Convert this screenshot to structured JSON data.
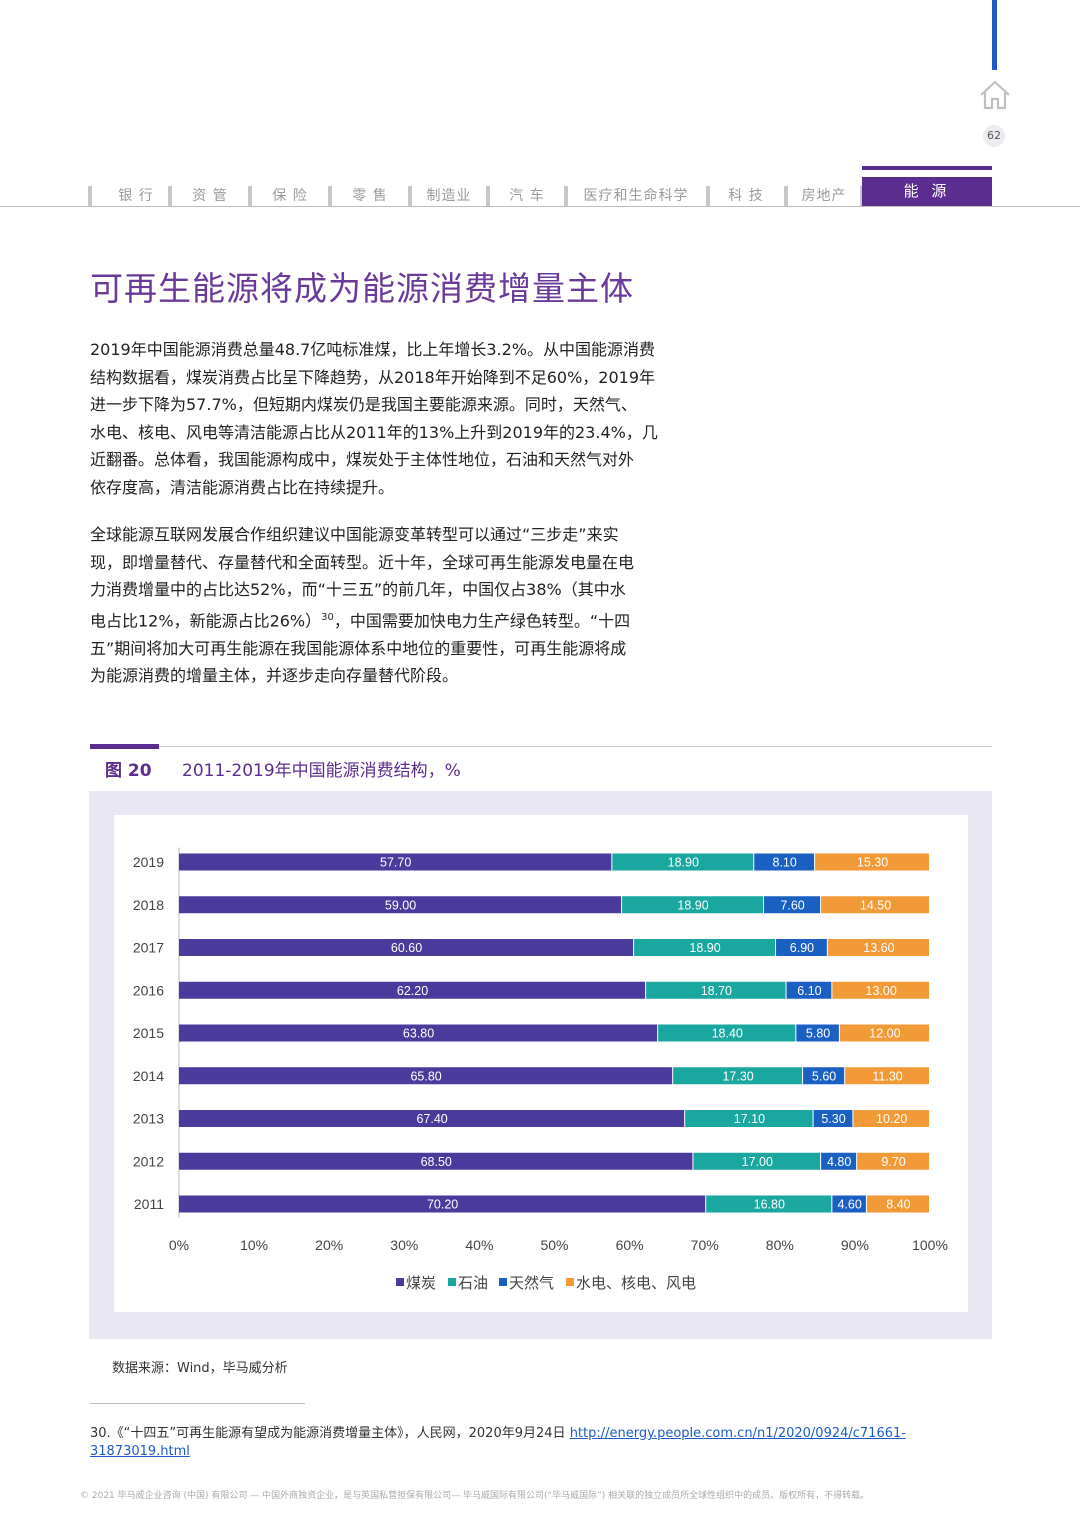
{
  "header": {
    "page_number": "62",
    "nav_tabs": [
      "银 行",
      "资 管",
      "保 险",
      "零 售",
      "制造业",
      "汽 车",
      "医疗和生命科学",
      "科 技",
      "房地产"
    ],
    "active_tab": "能 源"
  },
  "title": "可再生能源将成为能源消费增量主体",
  "para1": [
    "2019年中国能源消费总量48.7亿吨标准煤，比上年增长3.2%。从中国能源消费",
    "结构数据看，煤炭消费占比呈下降趋势，从2018年开始降到不足60%，2019年",
    "进一步下降为57.7%，但短期内煤炭仍是我国主要能源来源。同时，天然气、",
    "水电、核电、风电等清洁能源占比从2011年的13%上升到2019年的23.4%，几",
    "近翻番。总体看，我国能源构成中，煤炭处于主体性地位，石油和天然气对外",
    "依存度高，清洁能源消费占比在持续提升。"
  ],
  "para2": [
    "全球能源互联网发展合作组织建议中国能源变革转型可以通过“三步走”来实",
    "现，即增量替代、存量替代和全面转型。近十年，全球可再生能源发电量在电",
    "力消费增量中的占比达52%，而“十三五”的前几年，中国仅占38%（其中水",
    "电占比12%，新能源占比26%）",
    "，中国需要加快电力生产绿色转型。“十四",
    "五”期间将加大可再生能源在我国能源体系中地位的重要性，可再生能源将成",
    "为能源消费的增量主体，并逐步走向存量替代阶段。"
  ],
  "para2_footnote_ref": "30",
  "figure": {
    "label": "图 20",
    "title": "2011-2019年中国能源消费结构，%"
  },
  "chart_data": {
    "type": "bar",
    "orientation": "horizontal",
    "stacked": true,
    "categories": [
      "2019",
      "2018",
      "2017",
      "2016",
      "2015",
      "2014",
      "2013",
      "2012",
      "2011"
    ],
    "series": [
      {
        "name": "煤炭",
        "color": "#4a3a9c",
        "values": [
          57.7,
          59.0,
          60.6,
          62.2,
          63.8,
          65.8,
          67.4,
          68.5,
          70.2
        ]
      },
      {
        "name": "石油",
        "color": "#19a7a0",
        "values": [
          18.9,
          18.9,
          18.9,
          18.7,
          18.4,
          17.3,
          17.1,
          17.0,
          16.8
        ]
      },
      {
        "name": "天然气",
        "color": "#1a5fc2",
        "values": [
          8.1,
          7.6,
          6.9,
          6.1,
          5.8,
          5.6,
          5.3,
          4.8,
          4.6
        ]
      },
      {
        "name": "水电、核电、风电",
        "color": "#f39a38",
        "values": [
          15.3,
          14.5,
          13.6,
          13.0,
          12.0,
          11.3,
          10.2,
          9.7,
          8.4
        ]
      }
    ],
    "value_labels": [
      [
        "57.70",
        "18.90",
        "8.10",
        "15.30"
      ],
      [
        "59.00",
        "18.90",
        "7.60",
        "14.50"
      ],
      [
        "60.60",
        "18.90",
        "6.90",
        "13.60"
      ],
      [
        "62.20",
        "18.70",
        "6.10",
        "13.00"
      ],
      [
        "63.80",
        "18.40",
        "5.80",
        "12.00"
      ],
      [
        "65.80",
        "17.30",
        "5.60",
        "11.30"
      ],
      [
        "67.40",
        "17.10",
        "5.30",
        "10.20"
      ],
      [
        "68.50",
        "17.00",
        "4.80",
        "9.70"
      ],
      [
        "70.20",
        "16.80",
        "4.60",
        "8.40"
      ]
    ],
    "x_ticks": [
      "0%",
      "10%",
      "20%",
      "30%",
      "40%",
      "50%",
      "60%",
      "70%",
      "80%",
      "90%",
      "100%"
    ],
    "xlim": [
      0,
      100
    ],
    "legend_position": "bottom",
    "grid": false
  },
  "source": "数据来源：Wind，毕马威分析",
  "footnote": {
    "text": "30.《“十四五”可再生能源有望成为能源消费增量主体》，人民网，2020年9月24日",
    "link": "http://energy.people.com.cn/n1/2020/0924/c71661-31873019.html"
  },
  "copyright": "© 2021 毕马威企业咨询 (中国) 有限公司 — 中国外商独资企业，是与英国私营担保有限公司— 毕马威国际有限公司(“毕马威国际”) 相关联的独立成员所全球性组织中的成员。版权所有，不得转载。"
}
